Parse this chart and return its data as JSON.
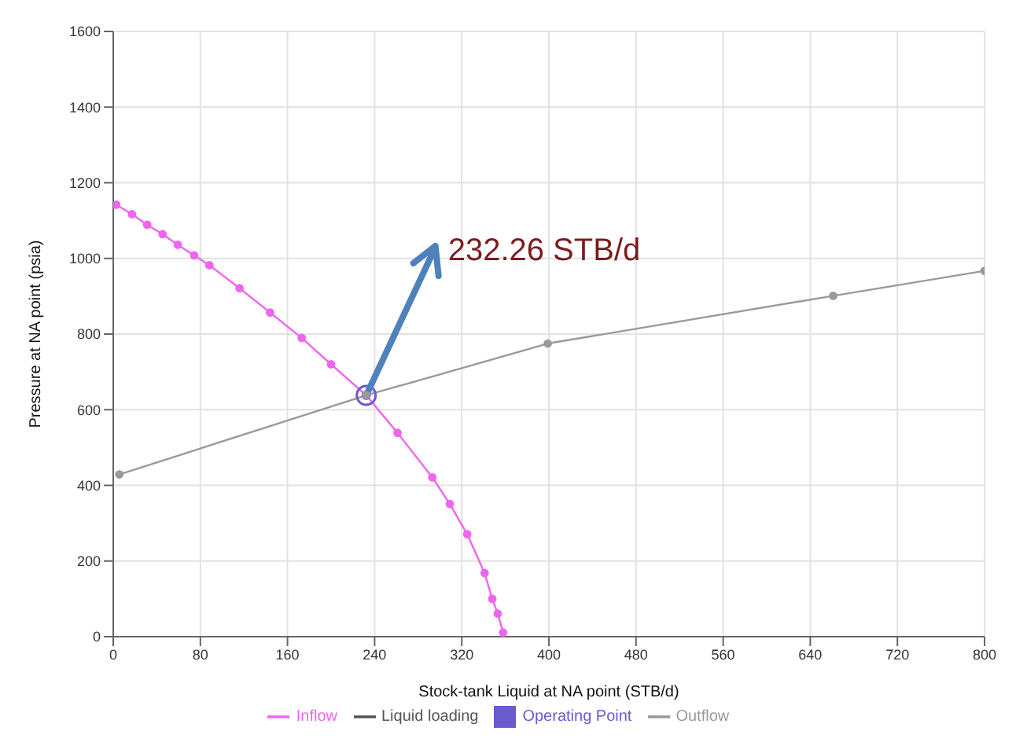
{
  "chart_data": {
    "type": "line",
    "xlabel": "Stock-tank Liquid at NA point (STB/d)",
    "ylabel": "Pressure at NA point (psia)",
    "xlim": [
      0,
      800
    ],
    "xticks": [
      0,
      80,
      160,
      240,
      320,
      400,
      480,
      560,
      640,
      720,
      800
    ],
    "ylim": [
      0,
      1600
    ],
    "yticks": [
      0,
      200,
      400,
      600,
      800,
      1000,
      1200,
      1400,
      1600
    ],
    "grid": true,
    "legend": "bottom",
    "marker": "circle",
    "line_style": "solid",
    "series": [
      {
        "name": "Operating Point",
        "type": "scatter",
        "color": "#6a5acd",
        "x": [
          232.26
        ],
        "values": [
          638
        ]
      },
      {
        "name": "Inflow",
        "color": "#ee66ee",
        "x": [
          2.8,
          17.2,
          31.2,
          45.3,
          59.3,
          74.3,
          88.3,
          116,
          144,
          173,
          200,
          232.26,
          261,
          293,
          309,
          325,
          341,
          348,
          353,
          358
        ],
        "values": [
          1142,
          1117,
          1089,
          1064,
          1036,
          1008,
          982,
          921,
          857,
          790,
          720,
          638,
          539,
          421,
          351,
          271,
          168,
          100,
          61,
          11
        ]
      },
      {
        "name": "Outflow",
        "color": "#999999",
        "x": [
          5.6,
          232.26,
          399,
          661,
          800
        ],
        "values": [
          429,
          638,
          775,
          901,
          967
        ]
      },
      {
        "name": "Liquid loading",
        "color": "#555555"
      }
    ],
    "annotations": [
      {
        "text": "232.26 STB/d",
        "x": 232.26,
        "y": 638
      }
    ]
  }
}
